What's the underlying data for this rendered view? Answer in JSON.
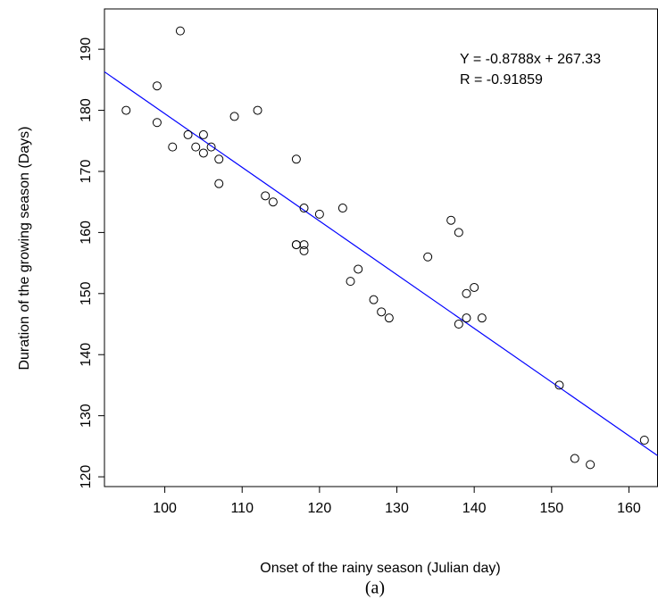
{
  "chart_data": {
    "type": "scatter",
    "x_label": "Onset of the rainy season (Julian day)",
    "y_label": "Duration of the growing season (Days)",
    "caption": "(a)",
    "annotations": [
      "Y = -0.8788x + 267.33",
      "R = -0.91859"
    ],
    "fit": {
      "slope": -0.8788,
      "intercept": 267.33,
      "color": "#0000ff"
    },
    "color": "#000000",
    "x": [
      95,
      99,
      99,
      102,
      101,
      103,
      104,
      105,
      105,
      106,
      107,
      107,
      109,
      112,
      113,
      114,
      117,
      117,
      117,
      118,
      118,
      118,
      120,
      123,
      124,
      125,
      127,
      128,
      129,
      134,
      137,
      138,
      138,
      139,
      139,
      140,
      141,
      151,
      153,
      155,
      162
    ],
    "values": [
      180,
      184,
      178,
      193,
      174,
      176,
      174,
      176,
      173,
      174,
      172,
      168,
      179,
      180,
      166,
      165,
      172,
      158,
      158,
      158,
      157,
      164,
      163,
      164,
      152,
      154,
      149,
      147,
      146,
      156,
      162,
      160,
      145,
      150,
      146,
      151,
      146,
      135,
      123,
      122,
      126
    ],
    "xlim": [
      92.2,
      163.7
    ],
    "ylim": [
      118.4,
      196.6
    ],
    "xticks": [
      100,
      110,
      120,
      130,
      140,
      150,
      160
    ],
    "yticks": [
      120,
      130,
      140,
      150,
      160,
      170,
      180,
      190
    ]
  }
}
